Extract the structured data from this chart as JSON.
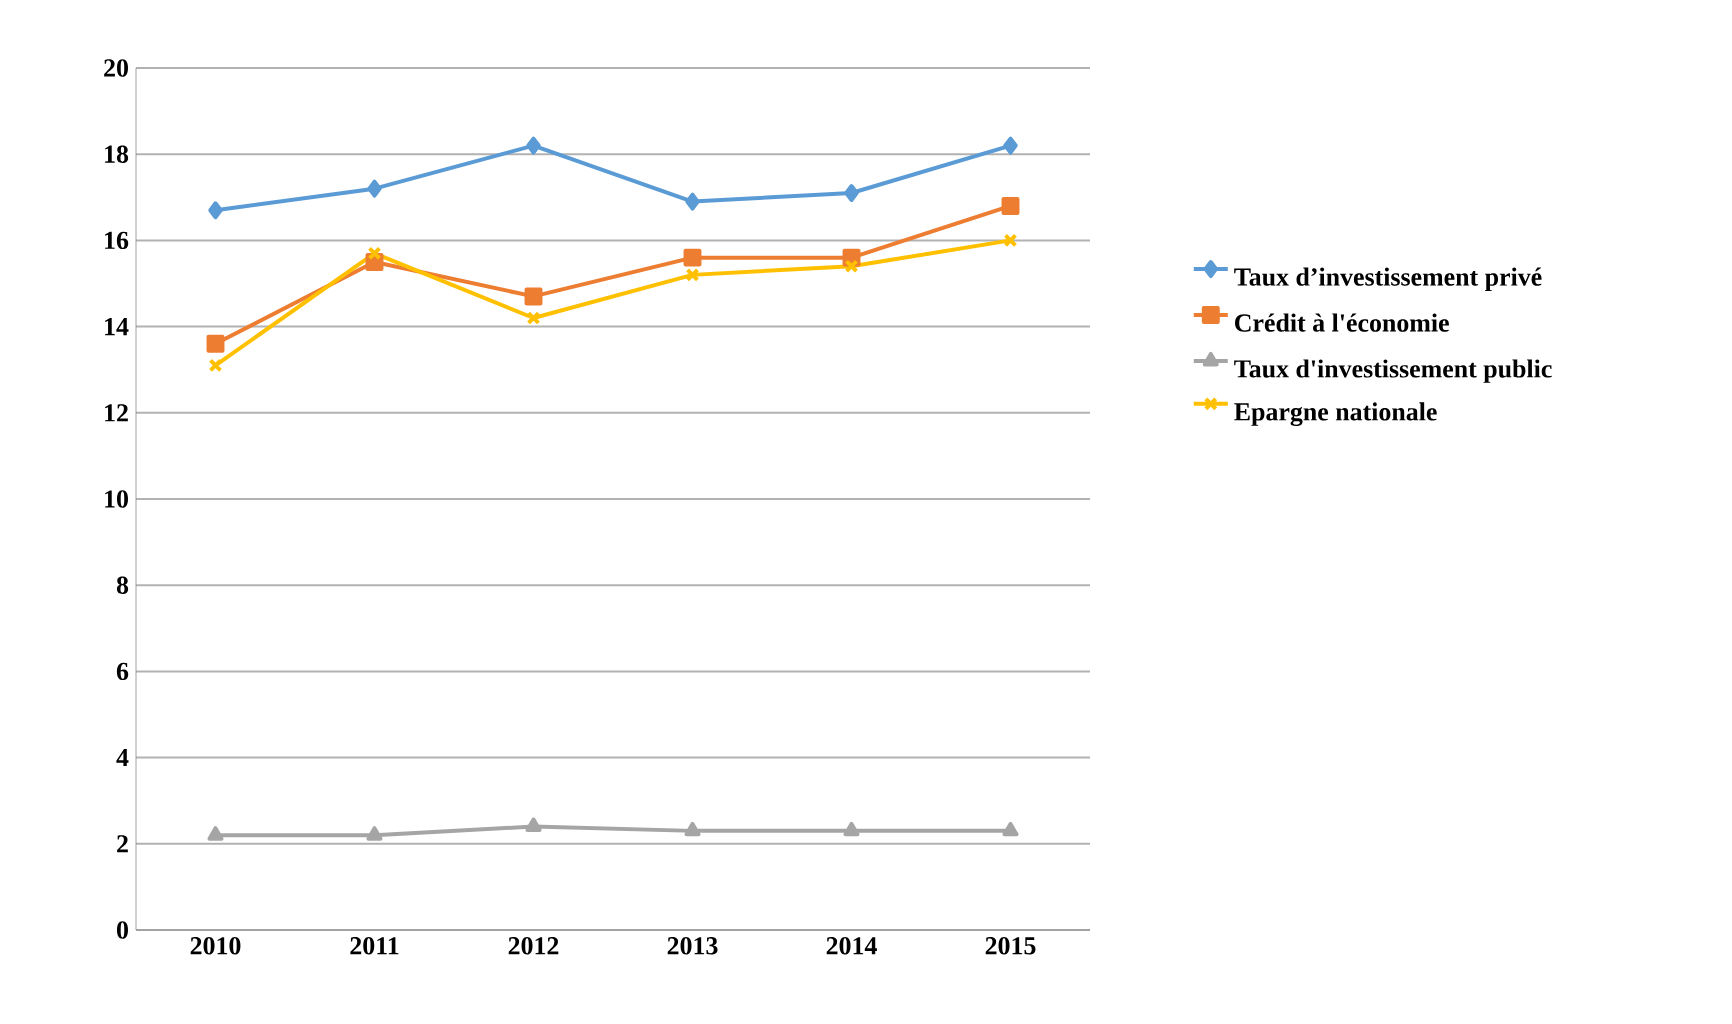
{
  "chart_data": {
    "type": "line",
    "categories": [
      "2010",
      "2011",
      "2012",
      "2013",
      "2014",
      "2015"
    ],
    "series": [
      {
        "name": "Taux d’investissement privé",
        "color": "#5b9bd5",
        "marker": "diamond",
        "values": [
          16.7,
          17.2,
          18.2,
          16.9,
          17.1,
          18.2
        ]
      },
      {
        "name": "Crédit à l'économie",
        "color": "#ed7d31",
        "marker": "square",
        "values": [
          13.6,
          15.5,
          14.7,
          15.6,
          15.6,
          16.8
        ]
      },
      {
        "name": "Taux d'investissement public",
        "color": "#a5a5a5",
        "marker": "triangle",
        "values": [
          2.2,
          2.2,
          2.4,
          2.3,
          2.3,
          2.3
        ]
      },
      {
        "name": "Epargne nationale",
        "color": "#ffc000",
        "marker": "cross",
        "values": [
          13.1,
          15.7,
          14.2,
          15.2,
          15.4,
          16.0
        ]
      }
    ],
    "ylim": [
      0,
      20
    ],
    "yticks": [
      0,
      2,
      4,
      6,
      8,
      10,
      12,
      14,
      16,
      18,
      20
    ],
    "grid": "y",
    "legend": "right",
    "line_style": "solid"
  }
}
